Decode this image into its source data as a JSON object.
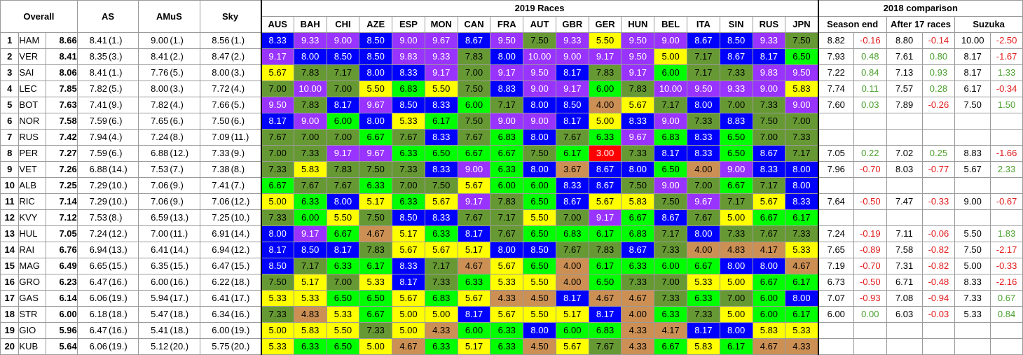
{
  "headers": {
    "overall": "Overall",
    "as": "AS",
    "amus": "AMuS",
    "sky": "Sky",
    "races_group": "2019 Races",
    "comparison_group": "2018 comparison",
    "races": [
      "AUS",
      "BAH",
      "CHI",
      "AZE",
      "ESP",
      "MON",
      "CAN",
      "FRA",
      "AUT",
      "GBR",
      "GER",
      "HUN",
      "BEL",
      "ITA",
      "SIN",
      "RUS",
      "JPN"
    ],
    "comparison": [
      "Season end",
      "After 17 races",
      "Suzuka"
    ]
  },
  "colors": {
    "blue": "#0000ff",
    "purple": "#9933ff",
    "green": "#00ff00",
    "dark_green": "#669933",
    "yellow": "#ffff00",
    "orange": "#cc9055",
    "red": "#ff0000",
    "positive_diff": "#4aa02c",
    "negative_diff": "#e11b1b"
  },
  "rows": [
    {
      "rank": "1",
      "driver": "HAM",
      "overall": "8.66",
      "as": "8.41",
      "as_pos": "(1.)",
      "amus": "9.00",
      "amus_pos": "(1.)",
      "sky": "8.56",
      "sky_pos": "(1.)",
      "races": [
        "8.33",
        "9.33",
        "9.00",
        "8.50",
        "9.00",
        "9.67",
        "8.67",
        "9.50",
        "7.50",
        "9.33",
        "5.50",
        "9.50",
        "9.00",
        "8.67",
        "8.50",
        "9.33",
        "7.50"
      ],
      "comp": [
        "8.82",
        "-0.16",
        "8.80",
        "-0.14",
        "10.00",
        "-2.50"
      ]
    },
    {
      "rank": "2",
      "driver": "VER",
      "overall": "8.41",
      "as": "8.35",
      "as_pos": "(3.)",
      "amus": "8.41",
      "amus_pos": "(2.)",
      "sky": "8.47",
      "sky_pos": "(2.)",
      "races": [
        "9.17",
        "8.00",
        "8.50",
        "8.50",
        "9.83",
        "9.33",
        "7.83",
        "8.00",
        "10.00",
        "9.00",
        "9.17",
        "9.50",
        "5.00",
        "7.17",
        "8.67",
        "8.17",
        "6.50"
      ],
      "comp": [
        "7.93",
        "0.48",
        "7.61",
        "0.80",
        "8.17",
        "-1.67"
      ]
    },
    {
      "rank": "3",
      "driver": "SAI",
      "overall": "8.06",
      "as": "8.41",
      "as_pos": "(1.)",
      "amus": "7.76",
      "amus_pos": "(5.)",
      "sky": "8.00",
      "sky_pos": "(3.)",
      "races": [
        "5.67",
        "7.83",
        "7.17",
        "8.00",
        "8.33",
        "9.17",
        "7.00",
        "9.17",
        "9.50",
        "8.17",
        "7.83",
        "9.17",
        "6.00",
        "7.17",
        "7.33",
        "9.83",
        "9.50"
      ],
      "comp": [
        "7.22",
        "0.84",
        "7.13",
        "0.93",
        "8.17",
        "1.33"
      ]
    },
    {
      "rank": "4",
      "driver": "LEC",
      "overall": "7.85",
      "as": "7.82",
      "as_pos": "(5.)",
      "amus": "8.00",
      "amus_pos": "(3.)",
      "sky": "7.72",
      "sky_pos": "(4.)",
      "races": [
        "7.00",
        "10.00",
        "7.00",
        "5.50",
        "6.83",
        "5.50",
        "7.50",
        "8.83",
        "9.00",
        "9.17",
        "6.00",
        "7.83",
        "10.00",
        "9.50",
        "9.33",
        "9.00",
        "5.83"
      ],
      "comp": [
        "7.74",
        "0.11",
        "7.57",
        "0.28",
        "6.17",
        "-0.34"
      ]
    },
    {
      "rank": "5",
      "driver": "BOT",
      "overall": "7.63",
      "as": "7.41",
      "as_pos": "(9.)",
      "amus": "7.82",
      "amus_pos": "(4.)",
      "sky": "7.66",
      "sky_pos": "(5.)",
      "races": [
        "9.50",
        "7.83",
        "8.17",
        "9.67",
        "8.50",
        "8.33",
        "6.00",
        "7.17",
        "8.00",
        "8.50",
        "4.00",
        "5.67",
        "7.17",
        "8.00",
        "7.00",
        "7.33",
        "9.00"
      ],
      "comp": [
        "7.60",
        "0.03",
        "7.89",
        "-0.26",
        "7.50",
        "1.50"
      ]
    },
    {
      "rank": "6",
      "driver": "NOR",
      "overall": "7.58",
      "as": "7.59",
      "as_pos": "(6.)",
      "amus": "7.65",
      "amus_pos": "(6.)",
      "sky": "7.50",
      "sky_pos": "(6.)",
      "races": [
        "8.17",
        "9.00",
        "6.00",
        "8.00",
        "5.33",
        "6.17",
        "7.50",
        "9.00",
        "9.00",
        "8.17",
        "5.00",
        "8.33",
        "9.00",
        "7.33",
        "8.83",
        "7.50",
        "7.00"
      ],
      "comp": [
        "",
        "",
        "",
        "",
        "",
        ""
      ]
    },
    {
      "rank": "7",
      "driver": "RUS",
      "overall": "7.42",
      "as": "7.94",
      "as_pos": "(4.)",
      "amus": "7.24",
      "amus_pos": "(8.)",
      "sky": "7.09",
      "sky_pos": "(11.)",
      "races": [
        "7.67",
        "7.00",
        "7.00",
        "6.67",
        "7.67",
        "8.33",
        "7.67",
        "6.83",
        "8.00",
        "7.67",
        "6.33",
        "9.67",
        "6.83",
        "8.33",
        "6.50",
        "7.00",
        "7.33"
      ],
      "comp": [
        "",
        "",
        "",
        "",
        "",
        ""
      ]
    },
    {
      "rank": "8",
      "driver": "PER",
      "overall": "7.27",
      "as": "7.59",
      "as_pos": "(6.)",
      "amus": "6.88",
      "amus_pos": "(12.)",
      "sky": "7.33",
      "sky_pos": "(9.)",
      "races": [
        "7.00",
        "7.33",
        "9.17",
        "9.67",
        "6.33",
        "6.50",
        "6.67",
        "6.67",
        "7.50",
        "6.17",
        "3.00",
        "7.33",
        "8.17",
        "8.33",
        "6.50",
        "8.67",
        "7.17"
      ],
      "comp": [
        "7.05",
        "0.22",
        "7.02",
        "0.25",
        "8.83",
        "-1.66"
      ]
    },
    {
      "rank": "9",
      "driver": "VET",
      "overall": "7.26",
      "as": "6.88",
      "as_pos": "(14.)",
      "amus": "7.53",
      "amus_pos": "(7.)",
      "sky": "7.38",
      "sky_pos": "(8.)",
      "races": [
        "7.33",
        "5.83",
        "7.83",
        "7.50",
        "7.33",
        "8.33",
        "9.00",
        "6.33",
        "8.00",
        "3.67",
        "8.67",
        "8.00",
        "6.50",
        "4.00",
        "9.00",
        "8.33",
        "8.00"
      ],
      "comp": [
        "7.96",
        "-0.70",
        "8.03",
        "-0.77",
        "5.67",
        "2.33"
      ]
    },
    {
      "rank": "10",
      "driver": "ALB",
      "overall": "7.25",
      "as": "7.29",
      "as_pos": "(10.)",
      "amus": "7.06",
      "amus_pos": "(9.)",
      "sky": "7.41",
      "sky_pos": "(7.)",
      "races": [
        "6.67",
        "7.67",
        "7.67",
        "6.33",
        "7.00",
        "7.50",
        "5.67",
        "6.00",
        "6.00",
        "8.33",
        "8.67",
        "7.50",
        "9.00",
        "7.00",
        "6.67",
        "7.17",
        "8.00"
      ],
      "comp": [
        "",
        "",
        "",
        "",
        "",
        ""
      ]
    },
    {
      "rank": "11",
      "driver": "RIC",
      "overall": "7.14",
      "as": "7.29",
      "as_pos": "(10.)",
      "amus": "7.06",
      "amus_pos": "(9.)",
      "sky": "7.06",
      "sky_pos": "(12.)",
      "races": [
        "5.00",
        "6.33",
        "8.00",
        "5.17",
        "6.33",
        "5.67",
        "9.17",
        "7.83",
        "6.50",
        "8.67",
        "5.67",
        "5.83",
        "7.50",
        "9.67",
        "7.17",
        "5.67",
        "8.33"
      ],
      "comp": [
        "7.64",
        "-0.50",
        "7.47",
        "-0.33",
        "9.00",
        "-0.67"
      ]
    },
    {
      "rank": "12",
      "driver": "KVY",
      "overall": "7.12",
      "as": "7.53",
      "as_pos": "(8.)",
      "amus": "6.59",
      "amus_pos": "(13.)",
      "sky": "7.25",
      "sky_pos": "(10.)",
      "races": [
        "7.33",
        "6.00",
        "5.50",
        "7.50",
        "8.50",
        "8.33",
        "7.67",
        "7.17",
        "5.50",
        "7.00",
        "9.17",
        "6.67",
        "8.67",
        "7.67",
        "5.00",
        "6.67",
        "6.17"
      ],
      "comp": [
        "",
        "",
        "",
        "",
        "",
        ""
      ]
    },
    {
      "rank": "13",
      "driver": "HUL",
      "overall": "7.05",
      "as": "7.24",
      "as_pos": "(12.)",
      "amus": "7.00",
      "amus_pos": "(11.)",
      "sky": "6.91",
      "sky_pos": "(14.)",
      "races": [
        "8.00",
        "9.17",
        "6.67",
        "4.67",
        "5.17",
        "6.33",
        "8.17",
        "7.67",
        "6.50",
        "6.83",
        "6.17",
        "6.83",
        "7.17",
        "8.00",
        "7.33",
        "7.67",
        "7.33"
      ],
      "comp": [
        "7.24",
        "-0.19",
        "7.11",
        "-0.06",
        "5.50",
        "1.83"
      ]
    },
    {
      "rank": "14",
      "driver": "RAI",
      "overall": "6.76",
      "as": "6.94",
      "as_pos": "(13.)",
      "amus": "6.41",
      "amus_pos": "(14.)",
      "sky": "6.94",
      "sky_pos": "(12.)",
      "races": [
        "8.17",
        "8.50",
        "8.17",
        "7.83",
        "5.67",
        "5.67",
        "5.17",
        "8.00",
        "8.50",
        "7.67",
        "7.83",
        "8.67",
        "7.33",
        "4.00",
        "4.83",
        "4.17",
        "5.33"
      ],
      "comp": [
        "7.65",
        "-0.89",
        "7.58",
        "-0.82",
        "7.50",
        "-2.17"
      ]
    },
    {
      "rank": "15",
      "driver": "MAG",
      "overall": "6.49",
      "as": "6.65",
      "as_pos": "(15.)",
      "amus": "6.35",
      "amus_pos": "(15.)",
      "sky": "6.47",
      "sky_pos": "(15.)",
      "races": [
        "8.50",
        "7.17",
        "6.33",
        "6.17",
        "8.33",
        "7.17",
        "4.67",
        "5.67",
        "6.50",
        "4.00",
        "6.17",
        "6.33",
        "6.00",
        "6.67",
        "8.00",
        "8.00",
        "4.67"
      ],
      "comp": [
        "7.19",
        "-0.70",
        "7.31",
        "-0.82",
        "5.00",
        "-0.33"
      ]
    },
    {
      "rank": "16",
      "driver": "GRO",
      "overall": "6.23",
      "as": "6.47",
      "as_pos": "(16.)",
      "amus": "6.00",
      "amus_pos": "(16.)",
      "sky": "6.22",
      "sky_pos": "(18.)",
      "races": [
        "7.50",
        "5.17",
        "7.00",
        "5.33",
        "8.17",
        "7.33",
        "6.33",
        "5.33",
        "5.50",
        "4.00",
        "6.50",
        "7.33",
        "7.00",
        "5.33",
        "5.00",
        "6.67",
        "6.17"
      ],
      "comp": [
        "6.73",
        "-0.50",
        "6.71",
        "-0.48",
        "8.33",
        "-2.16"
      ]
    },
    {
      "rank": "17",
      "driver": "GAS",
      "overall": "6.14",
      "as": "6.06",
      "as_pos": "(19.)",
      "amus": "5.94",
      "amus_pos": "(17.)",
      "sky": "6.41",
      "sky_pos": "(17.)",
      "races": [
        "5.33",
        "5.33",
        "6.50",
        "6.50",
        "5.67",
        "6.83",
        "5.67",
        "4.33",
        "4.50",
        "8.17",
        "4.67",
        "4.67",
        "7.33",
        "6.33",
        "7.00",
        "6.00",
        "8.00"
      ],
      "comp": [
        "7.07",
        "-0.93",
        "7.08",
        "-0.94",
        "7.33",
        "0.67"
      ]
    },
    {
      "rank": "18",
      "driver": "STR",
      "overall": "6.00",
      "as": "6.18",
      "as_pos": "(18.)",
      "amus": "5.47",
      "amus_pos": "(18.)",
      "sky": "6.34",
      "sky_pos": "(16.)",
      "races": [
        "7.33",
        "4.83",
        "5.33",
        "6.67",
        "5.00",
        "5.00",
        "8.17",
        "5.67",
        "5.50",
        "5.17",
        "8.17",
        "4.00",
        "6.33",
        "7.33",
        "5.00",
        "6.00",
        "6.17"
      ],
      "comp": [
        "6.00",
        "0.00",
        "6.03",
        "-0.03",
        "5.33",
        "0.84"
      ]
    },
    {
      "rank": "19",
      "driver": "GIO",
      "overall": "5.96",
      "as": "6.47",
      "as_pos": "(16.)",
      "amus": "5.41",
      "amus_pos": "(18.)",
      "sky": "6.00",
      "sky_pos": "(19.)",
      "races": [
        "5.00",
        "5.83",
        "5.50",
        "7.33",
        "5.00",
        "4.33",
        "6.00",
        "6.33",
        "8.00",
        "6.00",
        "6.83",
        "4.33",
        "4.17",
        "8.17",
        "8.00",
        "5.83",
        "5.33"
      ],
      "comp": [
        "",
        "",
        "",
        "",
        "",
        ""
      ]
    },
    {
      "rank": "20",
      "driver": "KUB",
      "overall": "5.64",
      "as": "6.06",
      "as_pos": "(19.)",
      "amus": "5.12",
      "amus_pos": "(20.)",
      "sky": "5.75",
      "sky_pos": "(20.)",
      "races": [
        "5.33",
        "6.33",
        "6.50",
        "5.00",
        "4.67",
        "6.33",
        "5.17",
        "6.33",
        "4.50",
        "5.67",
        "7.67",
        "4.33",
        "6.67",
        "5.83",
        "6.17",
        "4.67",
        "4.33"
      ],
      "comp": [
        "",
        "",
        "",
        "",
        "",
        ""
      ]
    }
  ]
}
